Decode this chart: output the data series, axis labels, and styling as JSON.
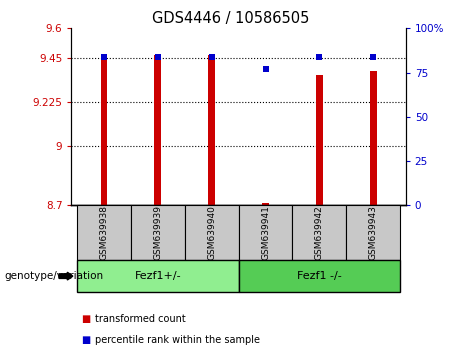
{
  "title": "GDS4446 / 10586505",
  "samples": [
    "GSM639938",
    "GSM639939",
    "GSM639940",
    "GSM639941",
    "GSM639942",
    "GSM639943"
  ],
  "red_values": [
    9.47,
    9.465,
    9.465,
    8.712,
    9.365,
    9.385
  ],
  "blue_values": [
    84,
    84,
    84,
    77,
    84,
    84
  ],
  "ylim_left": [
    8.7,
    9.6
  ],
  "ylim_right": [
    0,
    100
  ],
  "yticks_left": [
    8.7,
    9.0,
    9.225,
    9.45,
    9.6
  ],
  "ytick_labels_left": [
    "8.7",
    "9",
    "9.225",
    "9.45",
    "9.6"
  ],
  "yticks_right": [
    0,
    25,
    50,
    75,
    100
  ],
  "ytick_labels_right": [
    "0",
    "25",
    "50",
    "75",
    "100%"
  ],
  "hlines": [
    9.0,
    9.225,
    9.45
  ],
  "bar_bottom": 8.7,
  "group1_label": "Fezf1+/-",
  "group2_label": "Fezf1 -/-",
  "group1_indices": [
    0,
    1,
    2
  ],
  "group2_indices": [
    3,
    4,
    5
  ],
  "genotype_label": "genotype/variation",
  "legend_red": "transformed count",
  "legend_blue": "percentile rank within the sample",
  "red_color": "#cc0000",
  "blue_color": "#0000cc",
  "group1_color": "#90ee90",
  "group2_color": "#55cc55",
  "tick_area_color": "#c8c8c8",
  "bar_width": 0.12
}
